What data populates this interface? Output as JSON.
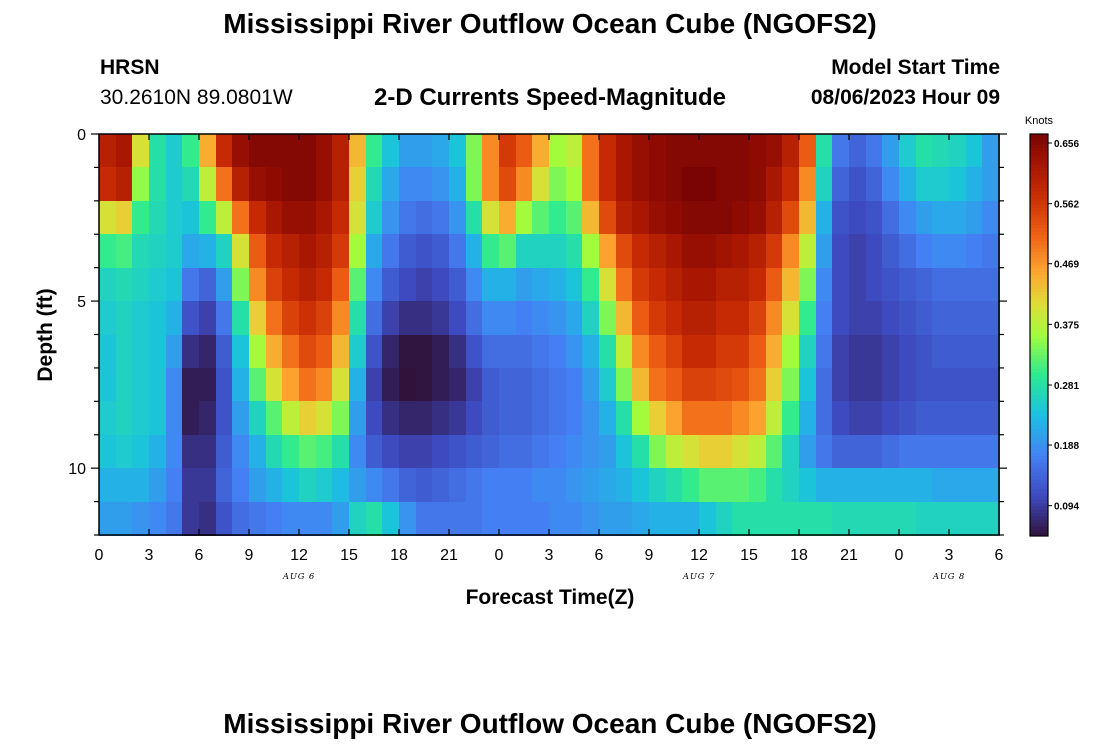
{
  "page": {
    "title": "Mississippi River Outflow Ocean Cube (NGOFS2)",
    "station": "HRSN",
    "coords": "30.2610N  89.0801W",
    "subtitle": "2-D Currents Speed-Magnitude",
    "model_label": "Model Start Time",
    "model_time": "08/06/2023 Hour 09",
    "bottom_title": "Mississippi River Outflow Ocean Cube (NGOFS2)"
  },
  "chart_data": {
    "type": "heatmap",
    "xlabel": "Forecast Time(Z)",
    "ylabel": "Depth (ft)",
    "x_range_hours": [
      0,
      54
    ],
    "x_tick_labels": [
      "0",
      "3",
      "6",
      "9",
      "12",
      "15",
      "18",
      "21",
      "0",
      "3",
      "6",
      "9",
      "12",
      "15",
      "18",
      "21",
      "0",
      "3",
      "6"
    ],
    "date_labels": [
      {
        "label": "AUG 6",
        "hour": 12
      },
      {
        "label": "AUG 7",
        "hour": 36
      },
      {
        "label": "AUG 8",
        "hour": 51
      }
    ],
    "y_range": [
      0,
      12
    ],
    "y_tick_labels": [
      "0",
      "5",
      "10"
    ],
    "y_tick_values": [
      0,
      5,
      10
    ],
    "colorbar": {
      "unit": "Knots",
      "min": 0.047,
      "max": 0.67,
      "tick_values": [
        0.656,
        0.562,
        0.469,
        0.375,
        0.281,
        0.188,
        0.094
      ],
      "tick_labels": [
        "0.656",
        "0.562",
        "0.469",
        "0.375",
        "0.281",
        "0.188",
        "0.094"
      ]
    },
    "grid_x_hours": [
      0,
      1,
      2,
      3,
      4,
      5,
      6,
      7,
      8,
      9,
      10,
      11,
      12,
      13,
      14,
      15,
      16,
      17,
      18,
      19,
      20,
      21,
      22,
      23,
      24,
      25,
      26,
      27,
      28,
      29,
      30,
      31,
      32,
      33,
      34,
      35,
      36,
      37,
      38,
      39,
      40,
      41,
      42,
      43,
      44,
      45,
      46,
      47,
      48,
      49,
      50,
      51,
      52,
      53,
      54
    ],
    "grid_depth_ft": [
      0,
      1,
      2,
      3,
      4,
      5,
      6,
      7,
      8,
      9,
      10,
      11,
      12
    ],
    "speed_knots": [
      [
        0.6,
        0.62,
        0.4,
        0.28,
        0.25,
        0.3,
        0.45,
        0.58,
        0.64,
        0.66,
        0.66,
        0.66,
        0.66,
        0.64,
        0.6,
        0.44,
        0.3,
        0.24,
        0.2,
        0.2,
        0.21,
        0.24,
        0.34,
        0.48,
        0.56,
        0.52,
        0.45,
        0.36,
        0.38,
        0.5,
        0.58,
        0.62,
        0.64,
        0.65,
        0.66,
        0.66,
        0.66,
        0.66,
        0.66,
        0.65,
        0.64,
        0.6,
        0.52,
        0.28,
        0.16,
        0.14,
        0.16,
        0.2,
        0.25,
        0.28,
        0.27,
        0.26,
        0.24,
        0.2,
        0.22
      ],
      [
        0.58,
        0.6,
        0.35,
        0.28,
        0.25,
        0.27,
        0.38,
        0.5,
        0.6,
        0.64,
        0.65,
        0.66,
        0.66,
        0.64,
        0.6,
        0.42,
        0.27,
        0.21,
        0.18,
        0.18,
        0.19,
        0.22,
        0.34,
        0.48,
        0.54,
        0.48,
        0.4,
        0.34,
        0.36,
        0.5,
        0.58,
        0.62,
        0.64,
        0.65,
        0.66,
        0.67,
        0.67,
        0.66,
        0.66,
        0.65,
        0.62,
        0.58,
        0.48,
        0.26,
        0.14,
        0.12,
        0.14,
        0.18,
        0.22,
        0.25,
        0.25,
        0.24,
        0.22,
        0.2,
        0.2
      ],
      [
        0.4,
        0.42,
        0.3,
        0.27,
        0.25,
        0.24,
        0.3,
        0.38,
        0.5,
        0.58,
        0.62,
        0.64,
        0.64,
        0.62,
        0.58,
        0.4,
        0.25,
        0.19,
        0.16,
        0.15,
        0.16,
        0.19,
        0.28,
        0.4,
        0.45,
        0.36,
        0.32,
        0.3,
        0.32,
        0.44,
        0.54,
        0.6,
        0.62,
        0.64,
        0.65,
        0.66,
        0.66,
        0.66,
        0.65,
        0.64,
        0.6,
        0.54,
        0.44,
        0.22,
        0.12,
        0.11,
        0.12,
        0.15,
        0.18,
        0.2,
        0.21,
        0.21,
        0.2,
        0.18,
        0.19
      ],
      [
        0.3,
        0.31,
        0.27,
        0.26,
        0.25,
        0.21,
        0.22,
        0.26,
        0.4,
        0.52,
        0.58,
        0.6,
        0.62,
        0.6,
        0.56,
        0.36,
        0.21,
        0.16,
        0.13,
        0.12,
        0.13,
        0.16,
        0.22,
        0.3,
        0.32,
        0.26,
        0.26,
        0.26,
        0.28,
        0.36,
        0.46,
        0.54,
        0.58,
        0.6,
        0.62,
        0.64,
        0.64,
        0.63,
        0.62,
        0.6,
        0.56,
        0.48,
        0.38,
        0.2,
        0.11,
        0.1,
        0.11,
        0.13,
        0.15,
        0.17,
        0.18,
        0.18,
        0.17,
        0.16,
        0.18
      ],
      [
        0.26,
        0.27,
        0.26,
        0.25,
        0.24,
        0.16,
        0.14,
        0.2,
        0.34,
        0.48,
        0.55,
        0.58,
        0.6,
        0.58,
        0.52,
        0.32,
        0.18,
        0.13,
        0.11,
        0.1,
        0.11,
        0.13,
        0.18,
        0.22,
        0.22,
        0.2,
        0.21,
        0.22,
        0.24,
        0.3,
        0.4,
        0.5,
        0.56,
        0.58,
        0.6,
        0.62,
        0.62,
        0.6,
        0.6,
        0.58,
        0.52,
        0.44,
        0.34,
        0.18,
        0.11,
        0.1,
        0.11,
        0.12,
        0.13,
        0.14,
        0.15,
        0.15,
        0.15,
        0.15,
        0.17
      ],
      [
        0.25,
        0.26,
        0.25,
        0.24,
        0.22,
        0.12,
        0.1,
        0.16,
        0.28,
        0.42,
        0.5,
        0.55,
        0.57,
        0.55,
        0.48,
        0.28,
        0.15,
        0.1,
        0.08,
        0.08,
        0.09,
        0.11,
        0.15,
        0.18,
        0.18,
        0.17,
        0.18,
        0.19,
        0.21,
        0.26,
        0.34,
        0.44,
        0.52,
        0.56,
        0.58,
        0.6,
        0.6,
        0.58,
        0.58,
        0.55,
        0.48,
        0.4,
        0.3,
        0.17,
        0.11,
        0.1,
        0.1,
        0.11,
        0.12,
        0.13,
        0.14,
        0.14,
        0.14,
        0.14,
        0.16
      ],
      [
        0.24,
        0.26,
        0.25,
        0.24,
        0.2,
        0.08,
        0.07,
        0.13,
        0.24,
        0.36,
        0.45,
        0.5,
        0.54,
        0.52,
        0.44,
        0.25,
        0.12,
        0.07,
        0.05,
        0.05,
        0.06,
        0.08,
        0.12,
        0.15,
        0.15,
        0.15,
        0.16,
        0.17,
        0.19,
        0.22,
        0.28,
        0.38,
        0.48,
        0.52,
        0.55,
        0.58,
        0.58,
        0.56,
        0.56,
        0.52,
        0.45,
        0.36,
        0.26,
        0.16,
        0.1,
        0.09,
        0.09,
        0.1,
        0.11,
        0.12,
        0.13,
        0.13,
        0.13,
        0.13,
        0.15
      ],
      [
        0.24,
        0.26,
        0.25,
        0.24,
        0.18,
        0.06,
        0.06,
        0.12,
        0.22,
        0.32,
        0.4,
        0.46,
        0.5,
        0.48,
        0.4,
        0.22,
        0.1,
        0.06,
        0.045,
        0.05,
        0.06,
        0.07,
        0.1,
        0.13,
        0.14,
        0.14,
        0.15,
        0.16,
        0.17,
        0.2,
        0.25,
        0.34,
        0.44,
        0.5,
        0.52,
        0.55,
        0.55,
        0.54,
        0.53,
        0.5,
        0.42,
        0.34,
        0.24,
        0.15,
        0.1,
        0.09,
        0.09,
        0.1,
        0.11,
        0.12,
        0.12,
        0.12,
        0.12,
        0.12,
        0.14
      ],
      [
        0.25,
        0.26,
        0.25,
        0.24,
        0.18,
        0.06,
        0.07,
        0.12,
        0.2,
        0.26,
        0.32,
        0.38,
        0.42,
        0.4,
        0.34,
        0.2,
        0.11,
        0.08,
        0.07,
        0.07,
        0.08,
        0.09,
        0.11,
        0.13,
        0.14,
        0.14,
        0.15,
        0.16,
        0.17,
        0.19,
        0.22,
        0.28,
        0.36,
        0.42,
        0.46,
        0.5,
        0.5,
        0.5,
        0.48,
        0.46,
        0.38,
        0.3,
        0.22,
        0.15,
        0.11,
        0.1,
        0.1,
        0.11,
        0.12,
        0.13,
        0.13,
        0.13,
        0.13,
        0.13,
        0.14
      ],
      [
        0.24,
        0.25,
        0.24,
        0.22,
        0.18,
        0.08,
        0.08,
        0.13,
        0.18,
        0.22,
        0.27,
        0.3,
        0.32,
        0.31,
        0.28,
        0.18,
        0.13,
        0.11,
        0.1,
        0.1,
        0.11,
        0.12,
        0.13,
        0.14,
        0.15,
        0.15,
        0.16,
        0.17,
        0.18,
        0.19,
        0.2,
        0.24,
        0.28,
        0.34,
        0.38,
        0.4,
        0.42,
        0.42,
        0.4,
        0.38,
        0.32,
        0.26,
        0.2,
        0.16,
        0.14,
        0.14,
        0.14,
        0.15,
        0.16,
        0.16,
        0.16,
        0.16,
        0.16,
        0.16,
        0.17
      ],
      [
        0.22,
        0.22,
        0.22,
        0.2,
        0.17,
        0.09,
        0.09,
        0.14,
        0.17,
        0.2,
        0.22,
        0.24,
        0.26,
        0.25,
        0.23,
        0.2,
        0.18,
        0.16,
        0.14,
        0.13,
        0.14,
        0.15,
        0.16,
        0.17,
        0.17,
        0.17,
        0.18,
        0.18,
        0.19,
        0.2,
        0.21,
        0.22,
        0.24,
        0.26,
        0.28,
        0.3,
        0.32,
        0.32,
        0.32,
        0.31,
        0.28,
        0.26,
        0.24,
        0.22,
        0.22,
        0.22,
        0.22,
        0.22,
        0.22,
        0.22,
        0.21,
        0.21,
        0.21,
        0.21,
        0.21
      ],
      [
        0.2,
        0.2,
        0.19,
        0.18,
        0.16,
        0.09,
        0.08,
        0.12,
        0.15,
        0.16,
        0.17,
        0.18,
        0.18,
        0.18,
        0.2,
        0.26,
        0.28,
        0.24,
        0.19,
        0.16,
        0.16,
        0.16,
        0.16,
        0.17,
        0.17,
        0.17,
        0.17,
        0.18,
        0.18,
        0.19,
        0.2,
        0.2,
        0.21,
        0.22,
        0.22,
        0.22,
        0.24,
        0.26,
        0.28,
        0.28,
        0.28,
        0.28,
        0.28,
        0.28,
        0.27,
        0.27,
        0.27,
        0.27,
        0.27,
        0.26,
        0.26,
        0.26,
        0.26,
        0.26,
        0.26
      ],
      [
        0.18,
        0.18,
        0.17,
        0.16,
        0.15,
        0.08,
        0.07,
        0.09,
        0.11,
        0.13,
        0.14,
        0.15,
        0.16,
        0.17,
        0.22,
        0.32,
        0.34,
        0.3,
        0.22,
        0.17,
        0.16,
        0.16,
        0.16,
        0.16,
        0.16,
        0.15,
        0.16,
        0.16,
        0.16,
        0.16,
        0.15,
        0.14,
        0.14,
        0.15,
        0.16,
        0.18,
        0.2,
        0.24,
        0.27,
        0.28,
        0.29,
        0.29,
        0.29,
        0.29,
        0.29,
        0.29,
        0.29,
        0.28,
        0.28,
        0.28,
        0.28,
        0.28,
        0.28,
        0.28,
        0.28
      ]
    ]
  }
}
